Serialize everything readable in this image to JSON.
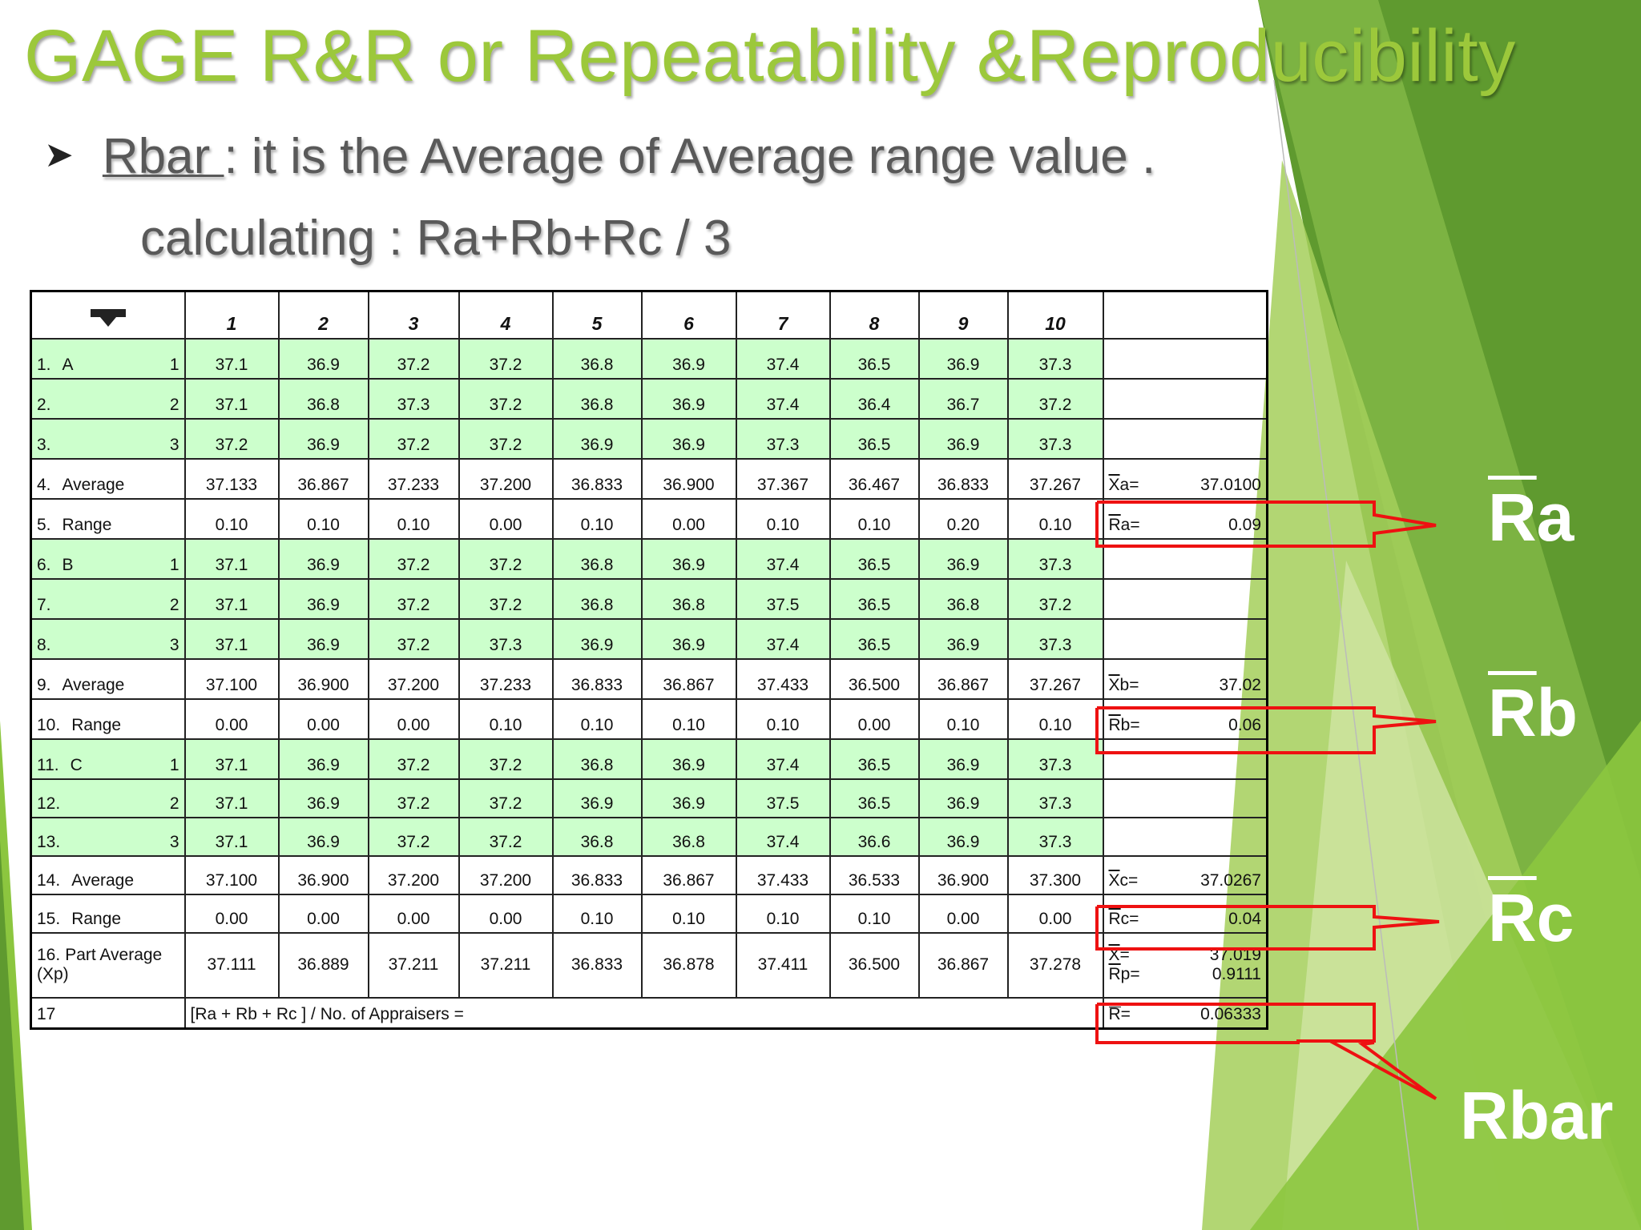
{
  "title": "GAGE R&R or Repeatability &Reproducibility",
  "bullet": {
    "term": "Rbar ",
    "text": ": it is the Average of Average range value .",
    "formula": "calculating : Ra+Rb+Rc / 3"
  },
  "table": {
    "header": [
      "1",
      "2",
      "3",
      "4",
      "5",
      "6",
      "7",
      "8",
      "9",
      "10"
    ],
    "rows": [
      {
        "num": "1.",
        "name": "A",
        "trial": "1",
        "cells": [
          "37.1",
          "36.9",
          "37.2",
          "37.2",
          "36.8",
          "36.9",
          "37.4",
          "36.5",
          "36.9",
          "37.3"
        ]
      },
      {
        "num": "2.",
        "trial": "2",
        "cells": [
          "37.1",
          "36.8",
          "37.3",
          "37.2",
          "36.8",
          "36.9",
          "37.4",
          "36.4",
          "36.7",
          "37.2"
        ]
      },
      {
        "num": "3.",
        "trial": "3",
        "cells": [
          "37.2",
          "36.9",
          "37.2",
          "37.2",
          "36.9",
          "36.9",
          "37.3",
          "36.5",
          "36.9",
          "37.3"
        ]
      },
      {
        "num": "4.",
        "name": "Average",
        "cells": [
          "37.133",
          "36.867",
          "37.233",
          "37.200",
          "36.833",
          "36.900",
          "37.367",
          "36.467",
          "36.833",
          "37.267"
        ],
        "summary": [
          {
            "symbol": "Xa",
            "op": "=",
            "value": "37.0100"
          }
        ]
      },
      {
        "num": "5.",
        "name": "Range",
        "cells": [
          "0.10",
          "0.10",
          "0.10",
          "0.00",
          "0.10",
          "0.00",
          "0.10",
          "0.10",
          "0.20",
          "0.10"
        ],
        "summary": [
          {
            "symbol": "Ra",
            "op": "=",
            "value": "0.09"
          }
        ]
      },
      {
        "num": "6.",
        "name": "B",
        "trial": "1",
        "cells": [
          "37.1",
          "36.9",
          "37.2",
          "37.2",
          "36.8",
          "36.9",
          "37.4",
          "36.5",
          "36.9",
          "37.3"
        ]
      },
      {
        "num": "7.",
        "trial": "2",
        "cells": [
          "37.1",
          "36.9",
          "37.2",
          "37.2",
          "36.8",
          "36.8",
          "37.5",
          "36.5",
          "36.8",
          "37.2"
        ]
      },
      {
        "num": "8.",
        "trial": "3",
        "cells": [
          "37.1",
          "36.9",
          "37.2",
          "37.3",
          "36.9",
          "36.9",
          "37.4",
          "36.5",
          "36.9",
          "37.3"
        ]
      },
      {
        "num": "9.",
        "name": "Average",
        "cells": [
          "37.100",
          "36.900",
          "37.200",
          "37.233",
          "36.833",
          "36.867",
          "37.433",
          "36.500",
          "36.867",
          "37.267"
        ],
        "summary": [
          {
            "symbol": "Xb",
            "op": "=",
            "value": "37.02"
          }
        ]
      },
      {
        "num": "10.",
        "name": "Range",
        "cells": [
          "0.00",
          "0.00",
          "0.00",
          "0.10",
          "0.10",
          "0.10",
          "0.10",
          "0.00",
          "0.10",
          "0.10"
        ],
        "summary": [
          {
            "symbol": "Rb",
            "op": "=",
            "value": "0.06"
          }
        ]
      },
      {
        "num": "11.",
        "name": "C",
        "trial": "1",
        "cells": [
          "37.1",
          "36.9",
          "37.2",
          "37.2",
          "36.8",
          "36.9",
          "37.4",
          "36.5",
          "36.9",
          "37.3"
        ]
      },
      {
        "num": "12.",
        "trial": "2",
        "cells": [
          "37.1",
          "36.9",
          "37.2",
          "37.2",
          "36.9",
          "36.9",
          "37.5",
          "36.5",
          "36.9",
          "37.3"
        ]
      },
      {
        "num": "13.",
        "trial": "3",
        "cells": [
          "37.1",
          "36.9",
          "37.2",
          "37.2",
          "36.8",
          "36.8",
          "37.4",
          "36.6",
          "36.9",
          "37.3"
        ]
      },
      {
        "num": "14.",
        "name": "Average",
        "cells": [
          "37.100",
          "36.900",
          "37.200",
          "37.200",
          "36.833",
          "36.867",
          "37.433",
          "36.533",
          "36.900",
          "37.300"
        ],
        "summary": [
          {
            "symbol": "Xc",
            "op": "=",
            "value": "37.0267"
          }
        ]
      },
      {
        "num": "15.",
        "name": "Range",
        "cells": [
          "0.00",
          "0.00",
          "0.00",
          "0.00",
          "0.10",
          "0.10",
          "0.10",
          "0.10",
          "0.00",
          "0.00"
        ],
        "summary": [
          {
            "symbol": "Rc",
            "op": "=",
            "value": "0.04"
          }
        ]
      },
      {
        "num": "16.",
        "name": "Part Average (Xp)",
        "cells": [
          "37.111",
          "36.889",
          "37.211",
          "37.211",
          "36.833",
          "36.878",
          "37.411",
          "36.500",
          "36.867",
          "37.278"
        ],
        "summary": [
          {
            "symbol": "X",
            "op": "=",
            "value": "37.019"
          },
          {
            "symbol": "Rp",
            "op": "=",
            "value": "0.9111"
          }
        ]
      },
      {
        "num": "17",
        "formula": "[Ra + Rb + Rc ] / No. of Appraisers =",
        "summary": [
          {
            "symbol": "R",
            "op": "=",
            "value": "0.06333"
          }
        ]
      }
    ]
  },
  "callouts": [
    "Ra",
    "Rb",
    "Rc",
    "Rbar"
  ]
}
